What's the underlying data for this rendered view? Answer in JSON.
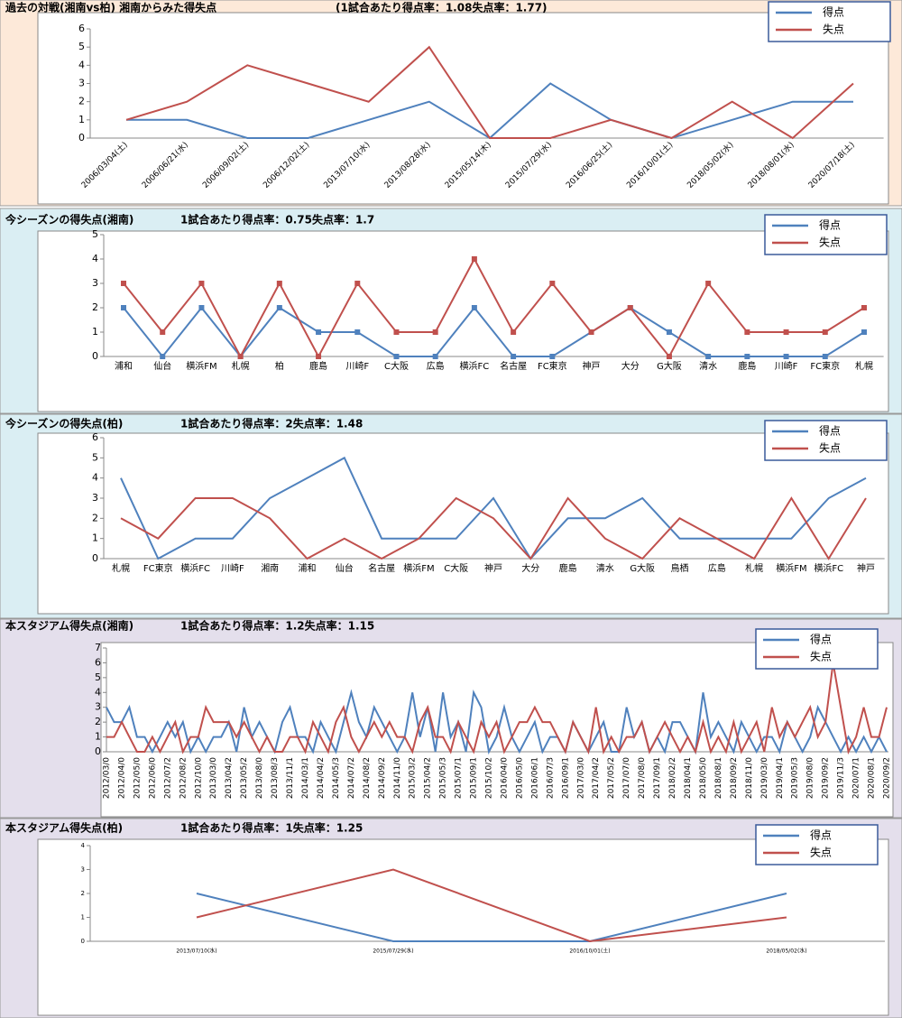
{
  "chart_data": [
    {
      "type": "line",
      "title": "過去の対戦(湘南vs柏)  湘南からみた得失点",
      "subtitle": "(1試合あたり得点率：1.08失点率：1.77)",
      "legend": "upper right",
      "categories": [
        "2006/03/04(土)",
        "2006/06/21(水)",
        "2006/09/02(土)",
        "2006/12/02(土)",
        "2013/07/10(水)",
        "2013/08/28(水)",
        "2015/05/14(木)",
        "2015/07/29(水)",
        "2016/06/25(土)",
        "2016/10/01(土)",
        "2018/05/02(水)",
        "2018/08/01(水)",
        "2020/07/18(土)"
      ],
      "series": [
        {
          "name": "得点",
          "color": "#4f81bd",
          "values": [
            1,
            1,
            0,
            0,
            1,
            2,
            0,
            3,
            1,
            0,
            1,
            2,
            2
          ]
        },
        {
          "name": "失点",
          "color": "#c0504d",
          "values": [
            1,
            2,
            4,
            3,
            2,
            5,
            0,
            0,
            1,
            0,
            2,
            0,
            3
          ]
        }
      ],
      "ylim": [
        0,
        6
      ],
      "yticks": [
        0,
        1,
        2,
        3,
        4,
        5,
        6
      ]
    },
    {
      "type": "line",
      "title": "今シーズンの得失点(湘南)",
      "subtitle": "1試合あたり得点率：0.75失点率：1.7",
      "legend": "upper right",
      "markers": true,
      "categories": [
        "浦和",
        "仙台",
        "横浜FM",
        "札幌",
        "柏",
        "鹿島",
        "川崎F",
        "C大阪",
        "広島",
        "横浜FC",
        "名古屋",
        "FC東京",
        "神戸",
        "大分",
        "G大阪",
        "清水",
        "鹿島",
        "川崎F",
        "FC東京",
        "札幌"
      ],
      "series": [
        {
          "name": "得点",
          "color": "#4f81bd",
          "values": [
            2,
            0,
            2,
            0,
            2,
            1,
            1,
            0,
            0,
            2,
            0,
            0,
            1,
            2,
            1,
            0,
            0,
            0,
            0,
            1
          ]
        },
        {
          "name": "失点",
          "color": "#c0504d",
          "values": [
            3,
            1,
            3,
            0,
            3,
            0,
            3,
            1,
            1,
            4,
            1,
            3,
            1,
            2,
            0,
            3,
            1,
            1,
            1,
            2
          ]
        }
      ],
      "ylim": [
        0,
        5
      ],
      "yticks": [
        0,
        1,
        2,
        3,
        4,
        5
      ]
    },
    {
      "type": "line",
      "title": "今シーズンの得失点(柏)",
      "subtitle": "1試合あたり得点率：2失点率：1.48",
      "legend": "upper right",
      "categories": [
        "札幌",
        "FC東京",
        "横浜FC",
        "川崎F",
        "湘南",
        "浦和",
        "仙台",
        "名古屋",
        "横浜FM",
        "C大阪",
        "神戸",
        "大分",
        "鹿島",
        "清水",
        "G大阪",
        "鳥栖",
        "広島",
        "札幌",
        "横浜FM",
        "横浜FC",
        "神戸"
      ],
      "series": [
        {
          "name": "得点",
          "color": "#4f81bd",
          "values": [
            4,
            0,
            1,
            1,
            3,
            4,
            5,
            1,
            1,
            1,
            3,
            0,
            2,
            2,
            3,
            1,
            1,
            1,
            1,
            3,
            4
          ]
        },
        {
          "name": "失点",
          "color": "#c0504d",
          "values": [
            2,
            1,
            3,
            3,
            2,
            0,
            1,
            0,
            1,
            3,
            2,
            0,
            3,
            1,
            0,
            2,
            1,
            0,
            3,
            0,
            3
          ]
        }
      ],
      "ylim": [
        0,
        6
      ],
      "yticks": [
        0,
        1,
        2,
        3,
        4,
        5,
        6
      ]
    },
    {
      "type": "line",
      "title": "本スタジアム得失点(湘南)",
      "subtitle": "1試合あたり得点率：1.2失点率：1.15",
      "legend": "upper right",
      "categories": [
        "2012/03/0",
        null,
        "2012/04/0",
        null,
        "2012/05/0",
        null,
        "2012/06/0",
        null,
        "2012/07/2",
        null,
        "2012/08/2",
        null,
        "2012/10/0",
        null,
        "2013/03/0",
        null,
        "2013/04/2",
        null,
        "2013/05/2",
        null,
        "2013/08/0",
        null,
        "2013/08/3",
        null,
        "2013/11/1",
        null,
        "2014/03/1",
        null,
        "2014/04/2",
        null,
        "2014/05/3",
        null,
        "2014/07/2",
        null,
        "2014/08/2",
        null,
        "2014/09/2",
        null,
        "2014/11/0",
        null,
        "2015/03/2",
        null,
        "2015/04/2",
        null,
        "2015/05/3",
        null,
        "2015/07/1",
        null,
        "2015/09/1",
        null,
        "2015/10/2",
        null,
        "2016/04/0",
        null,
        "2016/05/0",
        null,
        "2016/06/1",
        null,
        "2016/07/3",
        null,
        "2016/09/1",
        null,
        "2017/03/0",
        null,
        "2017/04/2",
        null,
        "2017/05/2",
        null,
        "2017/07/0",
        null,
        "2017/08/0",
        null,
        "2017/09/1",
        null,
        "2018/02/2",
        null,
        "2018/04/1",
        null,
        "2018/05/0",
        null,
        "2018/08/1",
        null,
        "2018/09/2",
        null,
        "2018/11/0",
        null,
        "2019/03/0",
        null,
        "2019/04/1",
        null,
        "2019/05/3",
        null,
        "2019/08/0",
        null,
        "2019/09/2",
        null,
        "2019/11/3",
        null,
        "2020/07/1",
        null,
        "2020/08/1",
        null,
        "2020/09/2"
      ],
      "series": [
        {
          "name": "得点",
          "color": "#4f81bd",
          "values": [
            3,
            2,
            2,
            3,
            1,
            1,
            0,
            1,
            2,
            1,
            2,
            0,
            1,
            0,
            1,
            1,
            2,
            0,
            3,
            1,
            2,
            1,
            0,
            2,
            3,
            1,
            1,
            0,
            2,
            1,
            0,
            2,
            4,
            2,
            1,
            3,
            2,
            1,
            0,
            1,
            4,
            1,
            3,
            0,
            4,
            1,
            2,
            0,
            4,
            3,
            0,
            1,
            3,
            1,
            0,
            1,
            2,
            0,
            1,
            1,
            0,
            2,
            1,
            0,
            1,
            2,
            0,
            0,
            3,
            1,
            2,
            0,
            1,
            0,
            2,
            2,
            1,
            0,
            4,
            1,
            2,
            1,
            0,
            2,
            1,
            0,
            1,
            1,
            0,
            2,
            1,
            0,
            1,
            3,
            2,
            1,
            0,
            1,
            0,
            1,
            0,
            1,
            0
          ]
        },
        {
          "name": "失点",
          "color": "#c0504d",
          "values": [
            1,
            1,
            2,
            1,
            0,
            0,
            1,
            0,
            1,
            2,
            0,
            1,
            1,
            3,
            2,
            2,
            2,
            1,
            2,
            1,
            0,
            1,
            0,
            0,
            1,
            1,
            0,
            2,
            1,
            0,
            2,
            3,
            1,
            0,
            1,
            2,
            1,
            2,
            1,
            1,
            0,
            2,
            3,
            1,
            1,
            0,
            2,
            1,
            0,
            2,
            1,
            2,
            0,
            1,
            2,
            2,
            3,
            2,
            2,
            1,
            0,
            2,
            1,
            0,
            3,
            0,
            1,
            0,
            1,
            1,
            2,
            0,
            1,
            2,
            1,
            0,
            1,
            0,
            2,
            0,
            1,
            0,
            2,
            0,
            1,
            2,
            0,
            3,
            1,
            2,
            1,
            2,
            3,
            1,
            2,
            6,
            3,
            0,
            1,
            3,
            1,
            1,
            3
          ]
        }
      ],
      "ylim": [
        0,
        7
      ],
      "yticks": [
        0,
        1,
        2,
        3,
        4,
        5,
        6,
        7
      ]
    },
    {
      "type": "line",
      "title": "本スタジアム得失点(柏)",
      "subtitle": "1試合あたり得点率：1失点率：1.25",
      "legend": "upper right",
      "categories": [
        "2013/07/10(水)",
        "2015/07/29(水)",
        "2016/10/01(土)",
        "2018/05/02(水)"
      ],
      "series": [
        {
          "name": "得点",
          "color": "#4f81bd",
          "values": [
            2,
            0,
            0,
            2
          ]
        },
        {
          "name": "失点",
          "color": "#c0504d",
          "values": [
            1,
            3,
            0,
            1
          ]
        }
      ],
      "ylim": [
        0,
        4
      ],
      "yticks": [
        0,
        1,
        2,
        3,
        4
      ]
    }
  ]
}
